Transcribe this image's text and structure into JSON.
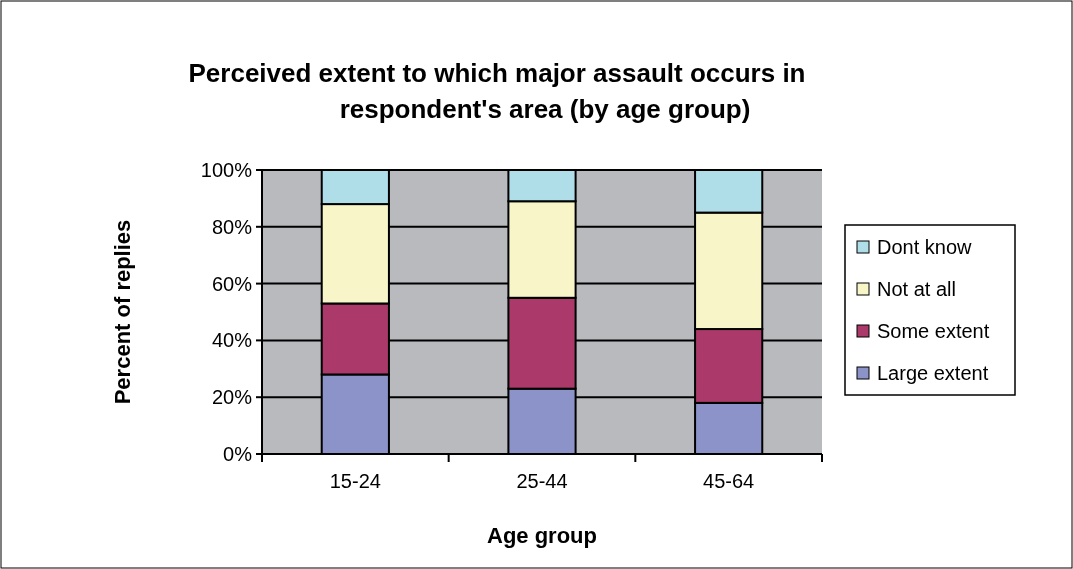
{
  "chart_data": {
    "type": "bar",
    "title": "Perceived extent to which major assault occurs in respondent's area (by age group)",
    "xlabel": "Age group",
    "ylabel": "Percent of replies",
    "categories": [
      "15-24",
      "25-44",
      "45-64"
    ],
    "stacked": true,
    "series": [
      {
        "name": "Large extent",
        "color": "#8b93c8",
        "values": [
          28,
          23,
          18
        ]
      },
      {
        "name": "Some extent",
        "color": "#ab3a6a",
        "values": [
          25,
          32,
          26
        ]
      },
      {
        "name": "Not at all",
        "color": "#f8f6c8",
        "values": [
          35,
          34,
          41
        ]
      },
      {
        "name": "Dont know",
        "color": "#afdde8",
        "values": [
          12,
          11,
          15
        ]
      }
    ],
    "ylim": [
      0,
      100
    ],
    "yticks": [
      {
        "value": 0,
        "label": "0%"
      },
      {
        "value": 20,
        "label": "20%"
      },
      {
        "value": 40,
        "label": "40%"
      },
      {
        "value": 60,
        "label": "60%"
      },
      {
        "value": 80,
        "label": "80%"
      },
      {
        "value": 100,
        "label": "100%"
      }
    ],
    "grid": "y",
    "legend": "right"
  }
}
